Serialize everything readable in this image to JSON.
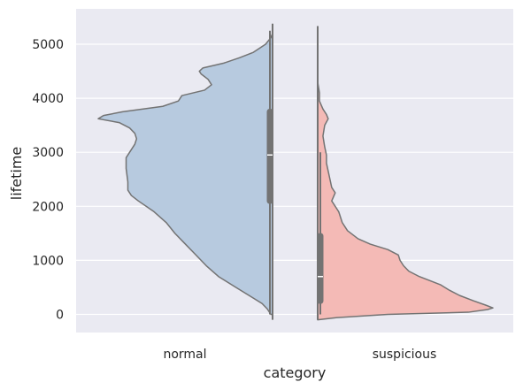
{
  "chart_data": {
    "type": "violin",
    "split": true,
    "xlabel": "category",
    "ylabel": "lifetime",
    "categories": [
      "normal",
      "suspicious"
    ],
    "ylim": [
      -350,
      5600
    ],
    "yticks": [
      0,
      1000,
      2000,
      3000,
      4000,
      5000
    ],
    "grid": true,
    "colors": {
      "background": "#eaeaf2",
      "grid": "#ffffff",
      "normal": "#b7cadf",
      "suspicious": "#f4bab6",
      "outline": "#737373",
      "box": "#737373",
      "median": "#ffffff"
    },
    "series": [
      {
        "category": "normal",
        "side": "left",
        "range": [
          -100,
          5380
        ],
        "whisker": [
          0,
          5250
        ],
        "quartiles": [
          2100,
          2950,
          3750
        ],
        "profile": [
          [
            0,
            0.01
          ],
          [
            100,
            0.03
          ],
          [
            200,
            0.06
          ],
          [
            300,
            0.11
          ],
          [
            500,
            0.21
          ],
          [
            700,
            0.31
          ],
          [
            900,
            0.38
          ],
          [
            1100,
            0.44
          ],
          [
            1300,
            0.5
          ],
          [
            1500,
            0.56
          ],
          [
            1700,
            0.61
          ],
          [
            1900,
            0.68
          ],
          [
            2100,
            0.77
          ],
          [
            2200,
            0.81
          ],
          [
            2300,
            0.83
          ],
          [
            2450,
            0.83
          ],
          [
            2700,
            0.84
          ],
          [
            2900,
            0.84
          ],
          [
            3000,
            0.82
          ],
          [
            3150,
            0.79
          ],
          [
            3250,
            0.78
          ],
          [
            3350,
            0.79
          ],
          [
            3450,
            0.82
          ],
          [
            3550,
            0.88
          ],
          [
            3620,
            1.0
          ],
          [
            3680,
            0.97
          ],
          [
            3750,
            0.86
          ],
          [
            3850,
            0.63
          ],
          [
            3950,
            0.54
          ],
          [
            4050,
            0.52
          ],
          [
            4150,
            0.39
          ],
          [
            4250,
            0.35
          ],
          [
            4350,
            0.37
          ],
          [
            4450,
            0.41
          ],
          [
            4500,
            0.42
          ],
          [
            4560,
            0.4
          ],
          [
            4650,
            0.28
          ],
          [
            4750,
            0.19
          ],
          [
            4850,
            0.11
          ],
          [
            5000,
            0.04
          ],
          [
            5120,
            0.01
          ],
          [
            5200,
            0.0
          ]
        ]
      },
      {
        "category": "suspicious",
        "side": "right",
        "range": [
          -100,
          5330
        ],
        "whisker": [
          0,
          3000
        ],
        "quartiles": [
          250,
          700,
          1450
        ],
        "profile": [
          [
            -100,
            0.0
          ],
          [
            -60,
            0.11
          ],
          [
            0,
            0.4
          ],
          [
            40,
            0.86
          ],
          [
            90,
            0.97
          ],
          [
            120,
            1.0
          ],
          [
            170,
            0.96
          ],
          [
            250,
            0.89
          ],
          [
            350,
            0.81
          ],
          [
            450,
            0.75
          ],
          [
            550,
            0.7
          ],
          [
            700,
            0.58
          ],
          [
            800,
            0.52
          ],
          [
            900,
            0.49
          ],
          [
            1000,
            0.47
          ],
          [
            1100,
            0.46
          ],
          [
            1200,
            0.4
          ],
          [
            1300,
            0.3
          ],
          [
            1400,
            0.23
          ],
          [
            1550,
            0.17
          ],
          [
            1700,
            0.14
          ],
          [
            1900,
            0.12
          ],
          [
            2100,
            0.08
          ],
          [
            2250,
            0.1
          ],
          [
            2350,
            0.08
          ],
          [
            2500,
            0.07
          ],
          [
            2650,
            0.06
          ],
          [
            2800,
            0.05
          ],
          [
            2950,
            0.05
          ],
          [
            3100,
            0.04
          ],
          [
            3300,
            0.03
          ],
          [
            3500,
            0.04
          ],
          [
            3620,
            0.06
          ],
          [
            3700,
            0.05
          ],
          [
            3800,
            0.03
          ],
          [
            3950,
            0.01
          ],
          [
            4100,
            0.01
          ],
          [
            4300,
            0.0
          ],
          [
            4600,
            0.0
          ],
          [
            5330,
            0.0
          ]
        ]
      }
    ]
  }
}
